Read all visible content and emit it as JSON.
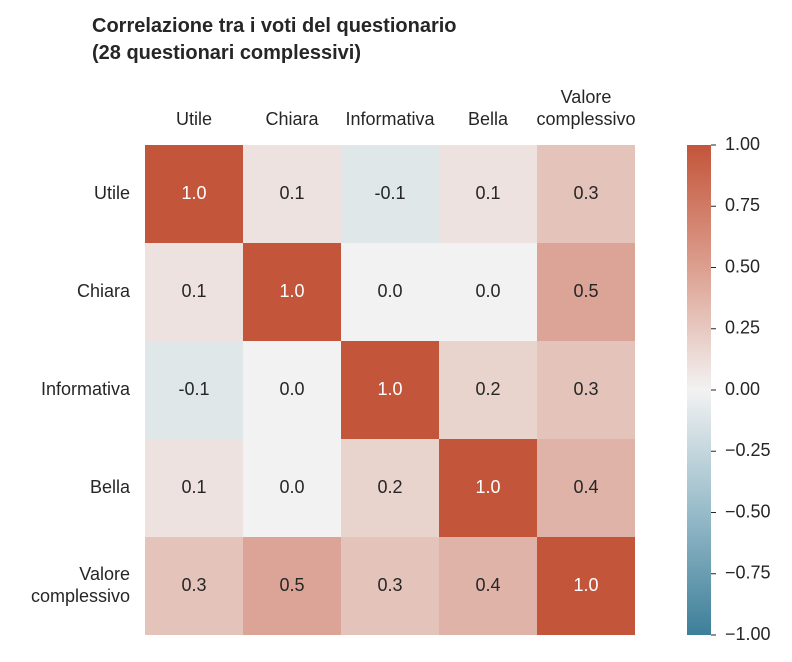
{
  "chart_data": {
    "type": "heatmap",
    "title": "Correlazione tra i voti del questionario\n(28 questionari complessivi)",
    "row_labels": [
      "Utile",
      "Chiara",
      "Informativa",
      "Bella",
      "Valore\ncomplessivo"
    ],
    "col_labels": [
      "Utile",
      "Chiara",
      "Informativa",
      "Bella",
      "Valore\ncomplessivo"
    ],
    "values": [
      [
        1.0,
        0.1,
        -0.1,
        0.1,
        0.3
      ],
      [
        0.1,
        1.0,
        0.0,
        0.0,
        0.5
      ],
      [
        -0.1,
        0.0,
        1.0,
        0.2,
        0.3
      ],
      [
        0.1,
        0.0,
        0.2,
        1.0,
        0.4
      ],
      [
        0.3,
        0.5,
        0.3,
        0.4,
        1.0
      ]
    ],
    "value_labels": [
      [
        "1.0",
        "0.1",
        "-0.1",
        "0.1",
        "0.3"
      ],
      [
        "0.1",
        "1.0",
        "0.0",
        "0.0",
        "0.5"
      ],
      [
        "-0.1",
        "0.0",
        "1.0",
        "0.2",
        "0.3"
      ],
      [
        "0.1",
        "0.0",
        "0.2",
        "1.0",
        "0.4"
      ],
      [
        "0.3",
        "0.5",
        "0.3",
        "0.4",
        "1.0"
      ]
    ],
    "colorbar": {
      "range": [
        -1.0,
        1.0
      ],
      "ticks": [
        "1.00",
        "0.75",
        "0.50",
        "0.25",
        "0.00",
        "−0.25",
        "−0.50",
        "−0.75",
        "−1.00"
      ],
      "tick_values": [
        1.0,
        0.75,
        0.5,
        0.25,
        0.0,
        -0.25,
        -0.5,
        -0.75,
        -1.0
      ]
    },
    "colors": {
      "negative": "#3d7f99",
      "neutral": "#f2f2f2",
      "positive": "#c3553a"
    },
    "x_tick_position": "top"
  }
}
